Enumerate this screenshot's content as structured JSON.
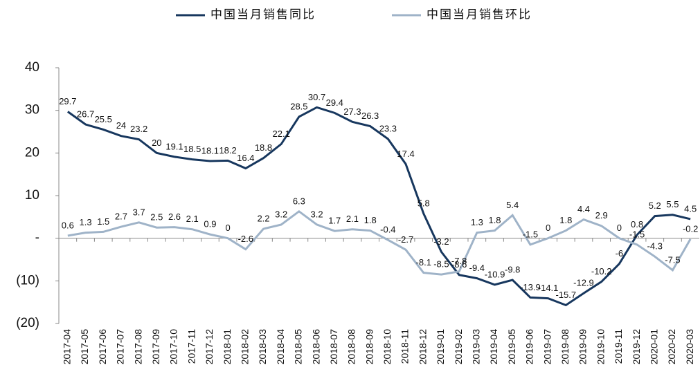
{
  "chart_data": {
    "type": "line",
    "categories": [
      "2017-04",
      "2017-05",
      "2017-06",
      "2017-07",
      "2017-08",
      "2017-09",
      "2017-10",
      "2017-11",
      "2017-12",
      "2018-01",
      "2018-02",
      "2018-03",
      "2018-04",
      "2018-05",
      "2018-06",
      "2018-07",
      "2018-08",
      "2018-09",
      "2018-10",
      "2018-11",
      "2018-12",
      "2019-01",
      "2019-02",
      "2019-03",
      "2019-04",
      "2019-05",
      "2019-06",
      "2019-07",
      "2019-08",
      "2019-09",
      "2019-10",
      "2019-11",
      "2019-12",
      "2020-01",
      "2020-02",
      "2020-03"
    ],
    "series": [
      {
        "name": "中国当月销售同比",
        "color": "#17375e",
        "values": [
          29.7,
          26.7,
          25.5,
          24.0,
          23.2,
          20.0,
          19.1,
          18.5,
          18.1,
          18.2,
          16.4,
          18.8,
          22.1,
          28.5,
          30.7,
          29.4,
          27.3,
          26.3,
          23.3,
          17.4,
          5.8,
          -3.2,
          -8.6,
          -9.4,
          -10.9,
          -9.8,
          -13.9,
          -14.1,
          -15.7,
          -12.9,
          -10.2,
          -6.0,
          0.8,
          5.2,
          5.5,
          4.5
        ]
      },
      {
        "name": "中国当月销售环比",
        "color": "#9fb3c8",
        "values": [
          0.6,
          1.3,
          1.5,
          2.7,
          3.7,
          2.5,
          2.6,
          2.1,
          0.9,
          0.0,
          -2.6,
          2.2,
          3.2,
          6.3,
          3.2,
          1.7,
          2.1,
          1.8,
          -0.4,
          -2.7,
          -8.1,
          -8.5,
          -7.8,
          1.3,
          1.8,
          5.4,
          -1.5,
          0.0,
          1.8,
          4.4,
          2.9,
          0.0,
          -1.5,
          -4.3,
          -7.5,
          -0.2
        ]
      }
    ],
    "ylim": [
      -20,
      40
    ],
    "yticks": [
      {
        "value": -20,
        "label": "(20)"
      },
      {
        "value": -10,
        "label": "(10)"
      },
      {
        "value": 0,
        "label": "-"
      },
      10,
      20,
      30,
      40
    ],
    "legend": "top"
  }
}
